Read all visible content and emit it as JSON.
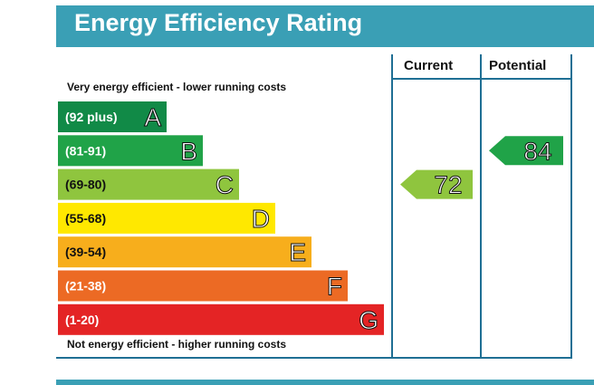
{
  "header": {
    "title": "Energy Efficiency Rating"
  },
  "notes": {
    "top": "Very energy efficient - lower running costs",
    "bottom": "Not energy efficient - higher running costs"
  },
  "columns": {
    "current": "Current",
    "potential": "Potential"
  },
  "chart_data": {
    "type": "bar",
    "bands": [
      {
        "range": "(92 plus)",
        "letter": "A",
        "color": "#118a47"
      },
      {
        "range": "(81-91)",
        "letter": "B",
        "color": "#20a348"
      },
      {
        "range": "(69-80)",
        "letter": "C",
        "color": "#8fc53e"
      },
      {
        "range": "(55-68)",
        "letter": "D",
        "color": "#ffe800"
      },
      {
        "range": "(39-54)",
        "letter": "E",
        "color": "#f7ae1c"
      },
      {
        "range": "(21-38)",
        "letter": "F",
        "color": "#ec6a24"
      },
      {
        "range": "(1-20)",
        "letter": "G",
        "color": "#e42425"
      }
    ],
    "current": {
      "value": 72,
      "band": "C",
      "color": "#8fc53e"
    },
    "potential": {
      "value": 84,
      "band": "B",
      "color": "#20a348"
    }
  }
}
